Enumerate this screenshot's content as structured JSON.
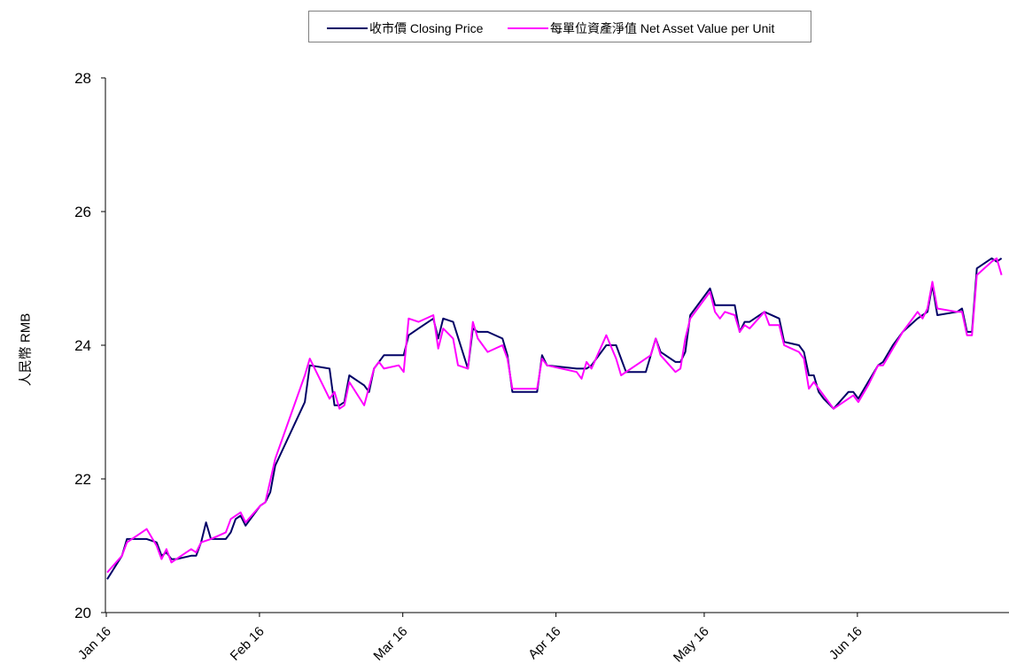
{
  "chart_data": {
    "type": "line",
    "title": "",
    "xlabel": "",
    "ylabel": "人民幣 RMB",
    "ylim": [
      20,
      28
    ],
    "y_ticks": [
      "20",
      "22",
      "24",
      "26",
      "28"
    ],
    "x_range": [
      "2016-01-01",
      "2016-06-30"
    ],
    "x_ticks": [
      {
        "label": "Jan 16",
        "date": "2016-01-01"
      },
      {
        "label": "Feb 16",
        "date": "2016-02-01"
      },
      {
        "label": "Mar 16",
        "date": "2016-03-01"
      },
      {
        "label": "Apr 16",
        "date": "2016-04-01"
      },
      {
        "label": "May 16",
        "date": "2016-05-01"
      },
      {
        "label": "Jun 16",
        "date": "2016-06-01"
      }
    ],
    "grid": false,
    "legend_position": "top-center",
    "series": [
      {
        "name": "收市價 Closing Price",
        "color": "#000066",
        "points": [
          [
            "2016-01-01",
            20.5
          ],
          [
            "2016-01-04",
            20.85
          ],
          [
            "2016-01-05",
            21.1
          ],
          [
            "2016-01-06",
            21.1
          ],
          [
            "2016-01-07",
            21.1
          ],
          [
            "2016-01-08",
            21.1
          ],
          [
            "2016-01-09",
            21.1
          ],
          [
            "2016-01-11",
            21.05
          ],
          [
            "2016-01-12",
            20.85
          ],
          [
            "2016-01-13",
            20.9
          ],
          [
            "2016-01-14",
            20.8
          ],
          [
            "2016-01-15",
            20.8
          ],
          [
            "2016-01-18",
            20.85
          ],
          [
            "2016-01-19",
            20.85
          ],
          [
            "2016-01-20",
            21.05
          ],
          [
            "2016-01-21",
            21.35
          ],
          [
            "2016-01-22",
            21.1
          ],
          [
            "2016-01-25",
            21.1
          ],
          [
            "2016-01-26",
            21.2
          ],
          [
            "2016-01-27",
            21.4
          ],
          [
            "2016-01-28",
            21.45
          ],
          [
            "2016-01-29",
            21.3
          ],
          [
            "2016-02-01",
            21.6
          ],
          [
            "2016-02-02",
            21.65
          ],
          [
            "2016-02-03",
            21.8
          ],
          [
            "2016-02-04",
            22.2
          ],
          [
            "2016-02-10",
            23.15
          ],
          [
            "2016-02-11",
            23.7
          ],
          [
            "2016-02-15",
            23.65
          ],
          [
            "2016-02-16",
            23.1
          ],
          [
            "2016-02-17",
            23.1
          ],
          [
            "2016-02-18",
            23.15
          ],
          [
            "2016-02-19",
            23.55
          ],
          [
            "2016-02-22",
            23.4
          ],
          [
            "2016-02-23",
            23.3
          ],
          [
            "2016-02-24",
            23.65
          ],
          [
            "2016-02-26",
            23.85
          ],
          [
            "2016-03-01",
            23.85
          ],
          [
            "2016-03-02",
            24.15
          ],
          [
            "2016-03-04",
            24.25
          ],
          [
            "2016-03-07",
            24.4
          ],
          [
            "2016-03-08",
            24.1
          ],
          [
            "2016-03-09",
            24.4
          ],
          [
            "2016-03-11",
            24.35
          ],
          [
            "2016-03-14",
            23.65
          ],
          [
            "2016-03-15",
            24.25
          ],
          [
            "2016-03-16",
            24.2
          ],
          [
            "2016-03-18",
            24.2
          ],
          [
            "2016-03-21",
            24.1
          ],
          [
            "2016-03-22",
            23.85
          ],
          [
            "2016-03-23",
            23.3
          ],
          [
            "2016-03-28",
            23.3
          ],
          [
            "2016-03-29",
            23.85
          ],
          [
            "2016-03-30",
            23.7
          ],
          [
            "2016-04-05",
            23.65
          ],
          [
            "2016-04-07",
            23.65
          ],
          [
            "2016-04-08",
            23.7
          ],
          [
            "2016-04-11",
            24.0
          ],
          [
            "2016-04-13",
            24.0
          ],
          [
            "2016-04-14",
            23.8
          ],
          [
            "2016-04-15",
            23.6
          ],
          [
            "2016-04-18",
            23.6
          ],
          [
            "2016-04-19",
            23.6
          ],
          [
            "2016-04-20",
            23.85
          ],
          [
            "2016-04-21",
            24.1
          ],
          [
            "2016-04-22",
            23.9
          ],
          [
            "2016-04-25",
            23.75
          ],
          [
            "2016-04-26",
            23.75
          ],
          [
            "2016-04-27",
            23.9
          ],
          [
            "2016-04-28",
            24.45
          ],
          [
            "2016-05-02",
            24.85
          ],
          [
            "2016-05-03",
            24.6
          ],
          [
            "2016-05-06",
            24.6
          ],
          [
            "2016-05-07",
            24.6
          ],
          [
            "2016-05-08",
            24.2
          ],
          [
            "2016-05-09",
            24.35
          ],
          [
            "2016-05-10",
            24.35
          ],
          [
            "2016-05-13",
            24.5
          ],
          [
            "2016-05-16",
            24.4
          ],
          [
            "2016-05-17",
            24.05
          ],
          [
            "2016-05-20",
            24.0
          ],
          [
            "2016-05-21",
            23.9
          ],
          [
            "2016-05-22",
            23.55
          ],
          [
            "2016-05-23",
            23.55
          ],
          [
            "2016-05-24",
            23.3
          ],
          [
            "2016-05-25",
            23.2
          ],
          [
            "2016-05-27",
            23.05
          ],
          [
            "2016-05-30",
            23.3
          ],
          [
            "2016-05-31",
            23.3
          ],
          [
            "2016-06-01",
            23.2
          ],
          [
            "2016-06-03",
            23.45
          ],
          [
            "2016-06-05",
            23.7
          ],
          [
            "2016-06-06",
            23.75
          ],
          [
            "2016-06-08",
            24.0
          ],
          [
            "2016-06-10",
            24.2
          ],
          [
            "2016-06-13",
            24.4
          ],
          [
            "2016-06-14",
            24.45
          ],
          [
            "2016-06-15",
            24.5
          ],
          [
            "2016-06-16",
            24.9
          ],
          [
            "2016-06-17",
            24.45
          ],
          [
            "2016-06-21",
            24.5
          ],
          [
            "2016-06-22",
            24.55
          ],
          [
            "2016-06-23",
            24.2
          ],
          [
            "2016-06-24",
            24.2
          ],
          [
            "2016-06-25",
            25.15
          ],
          [
            "2016-06-28",
            25.3
          ],
          [
            "2016-06-29",
            25.25
          ],
          [
            "2016-06-30",
            25.3
          ]
        ]
      },
      {
        "name": "每單位資產淨值 Net Asset Value per Unit",
        "color": "#ff00ff",
        "points": [
          [
            "2016-01-01",
            20.6
          ],
          [
            "2016-01-04",
            20.85
          ],
          [
            "2016-01-05",
            21.05
          ],
          [
            "2016-01-08",
            21.2
          ],
          [
            "2016-01-09",
            21.25
          ],
          [
            "2016-01-11",
            21.0
          ],
          [
            "2016-01-12",
            20.8
          ],
          [
            "2016-01-13",
            20.95
          ],
          [
            "2016-01-14",
            20.75
          ],
          [
            "2016-01-15",
            20.8
          ],
          [
            "2016-01-18",
            20.95
          ],
          [
            "2016-01-19",
            20.9
          ],
          [
            "2016-01-20",
            21.05
          ],
          [
            "2016-01-22",
            21.1
          ],
          [
            "2016-01-25",
            21.2
          ],
          [
            "2016-01-26",
            21.4
          ],
          [
            "2016-01-28",
            21.5
          ],
          [
            "2016-01-29",
            21.35
          ],
          [
            "2016-02-01",
            21.6
          ],
          [
            "2016-02-02",
            21.65
          ],
          [
            "2016-02-04",
            22.3
          ],
          [
            "2016-02-10",
            23.55
          ],
          [
            "2016-02-11",
            23.8
          ],
          [
            "2016-02-15",
            23.2
          ],
          [
            "2016-02-16",
            23.3
          ],
          [
            "2016-02-17",
            23.05
          ],
          [
            "2016-02-18",
            23.1
          ],
          [
            "2016-02-19",
            23.45
          ],
          [
            "2016-02-22",
            23.1
          ],
          [
            "2016-02-24",
            23.65
          ],
          [
            "2016-02-25",
            23.75
          ],
          [
            "2016-02-26",
            23.65
          ],
          [
            "2016-02-29",
            23.7
          ],
          [
            "2016-03-01",
            23.6
          ],
          [
            "2016-03-02",
            24.4
          ],
          [
            "2016-03-04",
            24.35
          ],
          [
            "2016-03-07",
            24.45
          ],
          [
            "2016-03-08",
            23.95
          ],
          [
            "2016-03-09",
            24.25
          ],
          [
            "2016-03-11",
            24.1
          ],
          [
            "2016-03-12",
            23.7
          ],
          [
            "2016-03-14",
            23.65
          ],
          [
            "2016-03-15",
            24.35
          ],
          [
            "2016-03-16",
            24.1
          ],
          [
            "2016-03-18",
            23.9
          ],
          [
            "2016-03-21",
            24.0
          ],
          [
            "2016-03-22",
            23.8
          ],
          [
            "2016-03-23",
            23.35
          ],
          [
            "2016-03-28",
            23.35
          ],
          [
            "2016-03-29",
            23.8
          ],
          [
            "2016-03-30",
            23.7
          ],
          [
            "2016-04-05",
            23.6
          ],
          [
            "2016-04-06",
            23.5
          ],
          [
            "2016-04-07",
            23.75
          ],
          [
            "2016-04-08",
            23.65
          ],
          [
            "2016-04-11",
            24.15
          ],
          [
            "2016-04-13",
            23.8
          ],
          [
            "2016-04-14",
            23.55
          ],
          [
            "2016-04-18",
            23.75
          ],
          [
            "2016-04-19",
            23.8
          ],
          [
            "2016-04-20",
            23.85
          ],
          [
            "2016-04-21",
            24.1
          ],
          [
            "2016-04-22",
            23.85
          ],
          [
            "2016-04-25",
            23.6
          ],
          [
            "2016-04-26",
            23.65
          ],
          [
            "2016-04-27",
            24.1
          ],
          [
            "2016-04-28",
            24.4
          ],
          [
            "2016-05-02",
            24.8
          ],
          [
            "2016-05-03",
            24.5
          ],
          [
            "2016-05-04",
            24.4
          ],
          [
            "2016-05-05",
            24.5
          ],
          [
            "2016-05-07",
            24.45
          ],
          [
            "2016-05-08",
            24.2
          ],
          [
            "2016-05-09",
            24.3
          ],
          [
            "2016-05-10",
            24.25
          ],
          [
            "2016-05-13",
            24.5
          ],
          [
            "2016-05-14",
            24.3
          ],
          [
            "2016-05-16",
            24.3
          ],
          [
            "2016-05-17",
            24.0
          ],
          [
            "2016-05-20",
            23.9
          ],
          [
            "2016-05-21",
            23.8
          ],
          [
            "2016-05-22",
            23.35
          ],
          [
            "2016-05-23",
            23.45
          ],
          [
            "2016-05-24",
            23.35
          ],
          [
            "2016-05-25",
            23.25
          ],
          [
            "2016-05-27",
            23.05
          ],
          [
            "2016-05-30",
            23.2
          ],
          [
            "2016-05-31",
            23.25
          ],
          [
            "2016-06-01",
            23.15
          ],
          [
            "2016-06-03",
            23.4
          ],
          [
            "2016-06-05",
            23.7
          ],
          [
            "2016-06-06",
            23.7
          ],
          [
            "2016-06-08",
            23.95
          ],
          [
            "2016-06-10",
            24.2
          ],
          [
            "2016-06-13",
            24.5
          ],
          [
            "2016-06-14",
            24.4
          ],
          [
            "2016-06-15",
            24.55
          ],
          [
            "2016-06-16",
            24.95
          ],
          [
            "2016-06-17",
            24.55
          ],
          [
            "2016-06-21",
            24.5
          ],
          [
            "2016-06-22",
            24.5
          ],
          [
            "2016-06-23",
            24.15
          ],
          [
            "2016-06-24",
            24.15
          ],
          [
            "2016-06-25",
            25.05
          ],
          [
            "2016-06-28",
            25.25
          ],
          [
            "2016-06-29",
            25.3
          ],
          [
            "2016-06-30",
            25.05
          ]
        ]
      }
    ]
  }
}
